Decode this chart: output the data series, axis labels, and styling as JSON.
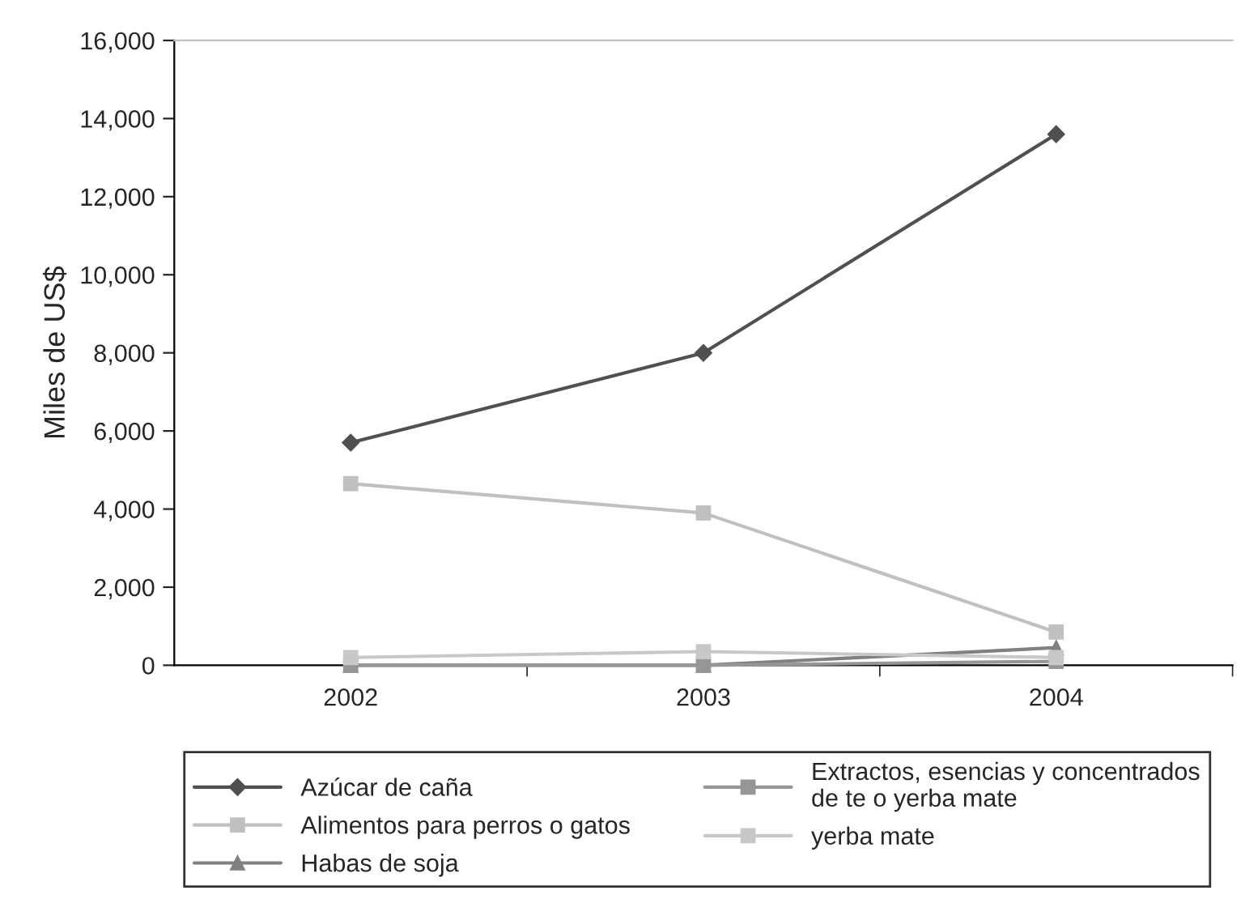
{
  "chart_data": {
    "type": "line",
    "ylabel": "Miles de US$",
    "categories": [
      "2002",
      "2003",
      "2004"
    ],
    "series": [
      {
        "name": "Azúcar de caña",
        "color": "#505050",
        "marker": "diamond",
        "values": [
          5700,
          8000,
          13600
        ]
      },
      {
        "name": "Alimentos para perros o gatos",
        "color": "#c0c0c0",
        "marker": "square",
        "values": [
          4650,
          3900,
          850
        ]
      },
      {
        "name": "Habas de soja",
        "color": "#808080",
        "marker": "triangle",
        "values": [
          0,
          0,
          450
        ]
      },
      {
        "name": "Extractos, esencias y concentrados\nde te o yerba mate",
        "color": "#969696",
        "marker": "square",
        "values": [
          0,
          0,
          100
        ]
      },
      {
        "name": "yerba mate",
        "color": "#c8c8c8",
        "marker": "square",
        "values": [
          200,
          350,
          200
        ]
      }
    ],
    "ylim": [
      0,
      16000
    ],
    "yticks": [
      {
        "value": 0,
        "label": "0"
      },
      {
        "value": 2000,
        "label": "2,000"
      },
      {
        "value": 4000,
        "label": "4,000"
      },
      {
        "value": 6000,
        "label": "6,000"
      },
      {
        "value": 8000,
        "label": "8,000"
      },
      {
        "value": 10000,
        "label": "10,000"
      },
      {
        "value": 12000,
        "label": "12,000"
      },
      {
        "value": 14000,
        "label": "14,000"
      },
      {
        "value": 16000,
        "label": "16,000"
      }
    ],
    "legend": "bottom",
    "line_style": "solid"
  }
}
